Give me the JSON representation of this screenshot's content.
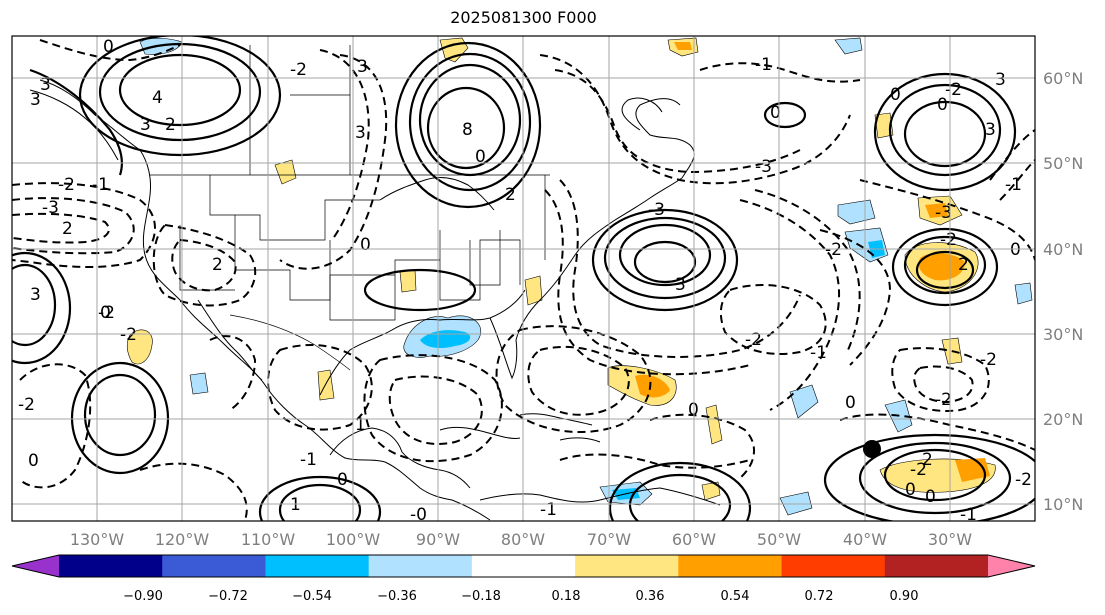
{
  "title": "2025081300 F000",
  "longitude_labels": [
    "130°W",
    "120°W",
    "110°W",
    "100°W",
    "90°W",
    "80°W",
    "70°W",
    "60°W",
    "50°W",
    "40°W",
    "30°W"
  ],
  "latitude_labels": [
    "60°N",
    "50°N",
    "40°N",
    "30°N",
    "20°N",
    "10°N"
  ],
  "colorbar": {
    "tick_labels": [
      "−0.90",
      "−0.72",
      "−0.54",
      "−0.36",
      "−0.18",
      "0.18",
      "0.36",
      "0.54",
      "0.72",
      "0.90"
    ],
    "colors": [
      "#9932cc",
      "#00008b",
      "#3b5bd6",
      "#00bfff",
      "#b0e2ff",
      "#ffffff",
      "#ffe680",
      "#ff9f00",
      "#ff3d00",
      "#b22222",
      "#ff82ab"
    ],
    "extend": "both"
  },
  "contour_labels": [
    "0",
    "3",
    "4",
    "3",
    "2",
    "-2",
    "3",
    "8",
    "0",
    "2",
    "3",
    "3",
    "-1",
    "0",
    "-3",
    "-2",
    "-3",
    "2",
    "-1",
    "3",
    "2",
    "-3",
    "3",
    "-2",
    "0",
    "0",
    "-2",
    "3",
    "-3",
    "-2",
    "2",
    "-2",
    "-2",
    "0",
    "-2",
    "-1",
    "0",
    "1",
    "0",
    "-2",
    "0",
    "-2",
    "-1",
    "0",
    "-1",
    "-2",
    "0",
    "0",
    "-2",
    "3",
    "-1",
    "-2",
    "-1",
    "0",
    "0",
    "1",
    "-0",
    "2"
  ],
  "marker": {
    "name": "black-dot",
    "lon": -40,
    "lat": 16.5
  }
}
